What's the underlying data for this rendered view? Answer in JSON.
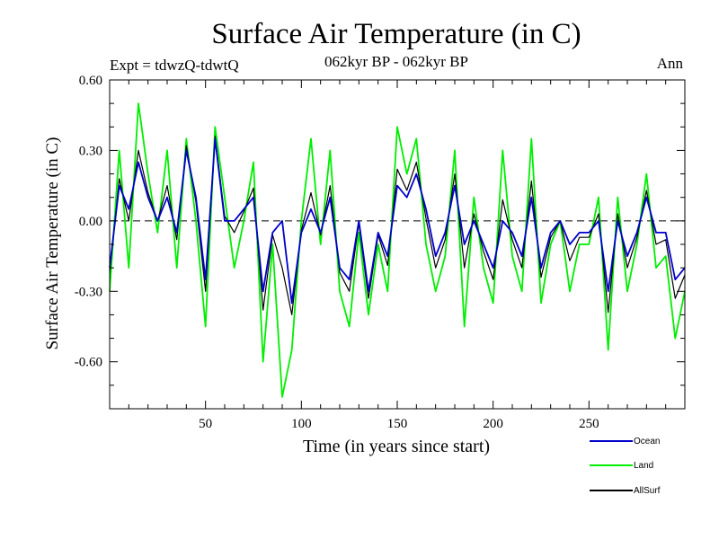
{
  "chart_data": {
    "type": "line",
    "title": "Surface Air Temperature (in C)",
    "subtitle": "062kyr BP - 062kyr BP",
    "expt_label": "Expt = tdwzQ-tdwtQ",
    "season_label": "Ann",
    "xlabel": "Time (in years since start)",
    "ylabel": "Surface Air Temperature (in C)",
    "xlim": [
      0,
      300
    ],
    "ylim": [
      -0.8,
      0.6
    ],
    "xticks": [
      50,
      100,
      150,
      200,
      250
    ],
    "xtick_labels": [
      "50",
      "100",
      "150",
      "200",
      "250"
    ],
    "yticks": [
      0.6,
      0.3,
      0.0,
      -0.3,
      -0.6
    ],
    "ytick_labels": [
      "0.60",
      "0.30",
      "0.00",
      "-0.30",
      "-0.60"
    ],
    "zero_line": "dashed",
    "legend_position": "bottom-right",
    "colors": {
      "ocean": "#0000cc",
      "land": "#00ee00",
      "allsurf": "#000000"
    },
    "series": [
      {
        "name": "Ocean",
        "key": "ocean",
        "x_step": 5,
        "values": [
          -0.2,
          0.15,
          0.05,
          0.25,
          0.1,
          0.0,
          0.1,
          -0.05,
          0.3,
          0.1,
          -0.25,
          0.35,
          0.0,
          0.0,
          0.05,
          0.1,
          -0.3,
          -0.05,
          0.0,
          -0.35,
          -0.05,
          0.05,
          -0.05,
          0.1,
          -0.2,
          -0.25,
          0.0,
          -0.3,
          -0.05,
          -0.15,
          0.15,
          0.1,
          0.2,
          0.05,
          -0.15,
          -0.05,
          0.15,
          -0.1,
          0.0,
          -0.1,
          -0.2,
          0.0,
          -0.05,
          -0.15,
          0.1,
          -0.2,
          -0.05,
          0.0,
          -0.1,
          -0.05,
          -0.05,
          0.0,
          -0.3,
          0.0,
          -0.15,
          -0.05,
          0.1,
          -0.05,
          -0.05,
          -0.25,
          -0.2
        ]
      },
      {
        "name": "Land",
        "key": "land",
        "x_step": 5,
        "values": [
          -0.3,
          0.3,
          -0.2,
          0.5,
          0.2,
          -0.05,
          0.3,
          -0.2,
          0.35,
          0.0,
          -0.45,
          0.4,
          0.1,
          -0.2,
          0.0,
          0.25,
          -0.6,
          -0.1,
          -0.75,
          -0.55,
          0.0,
          0.35,
          -0.1,
          0.3,
          -0.3,
          -0.45,
          -0.05,
          -0.4,
          -0.1,
          -0.3,
          0.4,
          0.2,
          0.35,
          -0.1,
          -0.3,
          -0.15,
          0.3,
          -0.45,
          0.1,
          -0.2,
          -0.35,
          0.3,
          -0.15,
          -0.3,
          0.35,
          -0.35,
          -0.1,
          0.0,
          -0.3,
          -0.1,
          -0.1,
          0.1,
          -0.55,
          0.1,
          -0.3,
          -0.1,
          0.2,
          -0.2,
          -0.15,
          -0.5,
          -0.3
        ]
      },
      {
        "name": "AllSurf",
        "key": "allsurf",
        "x_step": 5,
        "values": [
          -0.22,
          0.18,
          0.0,
          0.3,
          0.12,
          0.0,
          0.15,
          -0.08,
          0.32,
          0.08,
          -0.3,
          0.36,
          0.02,
          -0.05,
          0.04,
          0.14,
          -0.38,
          -0.06,
          -0.2,
          -0.4,
          -0.04,
          0.12,
          -0.06,
          0.15,
          -0.22,
          -0.3,
          -0.01,
          -0.33,
          -0.06,
          -0.19,
          0.22,
          0.13,
          0.25,
          0.01,
          -0.2,
          -0.08,
          0.2,
          -0.2,
          0.03,
          -0.13,
          -0.25,
          0.09,
          -0.08,
          -0.2,
          0.17,
          -0.24,
          -0.07,
          0.0,
          -0.17,
          -0.07,
          -0.07,
          0.03,
          -0.39,
          0.03,
          -0.2,
          -0.07,
          0.13,
          -0.1,
          -0.08,
          -0.33,
          -0.23
        ]
      }
    ]
  },
  "legend": {
    "items": [
      {
        "label": "Ocean",
        "key": "ocean"
      },
      {
        "label": "Land",
        "key": "land"
      },
      {
        "label": "AllSurf",
        "key": "allsurf"
      }
    ]
  }
}
